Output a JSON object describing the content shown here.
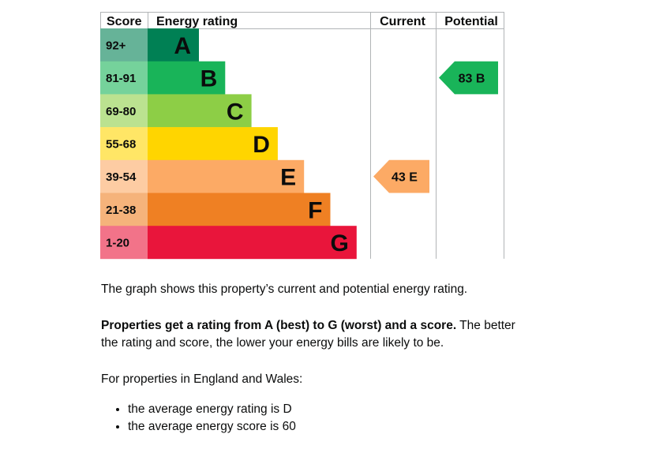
{
  "chart_data": {
    "type": "bar",
    "headers": {
      "score": "Score",
      "rating": "Energy rating",
      "current": "Current",
      "potential": "Potential"
    },
    "bands": [
      {
        "letter": "A",
        "range": "92+",
        "color": "#008054",
        "score_bg": "#66b398"
      },
      {
        "letter": "B",
        "range": "81-91",
        "color": "#19b459",
        "score_bg": "#75d29b"
      },
      {
        "letter": "C",
        "range": "69-80",
        "color": "#8dce46",
        "score_bg": "#bbe290"
      },
      {
        "letter": "D",
        "range": "55-68",
        "color": "#ffd500",
        "score_bg": "#ffe666"
      },
      {
        "letter": "E",
        "range": "39-54",
        "color": "#fcaa65",
        "score_bg": "#fdcca3"
      },
      {
        "letter": "F",
        "range": "21-38",
        "color": "#ef8023",
        "score_bg": "#f5b37b"
      },
      {
        "letter": "G",
        "range": "1-20",
        "color": "#e9153b",
        "score_bg": "#f27389"
      }
    ],
    "current": {
      "score": 43,
      "band": "E",
      "label": "43 E",
      "color": "#fcaa65"
    },
    "potential": {
      "score": 83,
      "band": "B",
      "label": "83 B",
      "color": "#19b459"
    }
  },
  "text": {
    "p1": "The graph shows this property’s current and potential energy rating.",
    "p2_bold": "Properties get a rating from A (best) to G (worst) and a score.",
    "p2_rest": " The better the rating and score, the lower your energy bills are likely to be.",
    "p3": "For properties in England and Wales:",
    "bullets": [
      "the average energy rating is D",
      "the average energy score is 60"
    ]
  }
}
